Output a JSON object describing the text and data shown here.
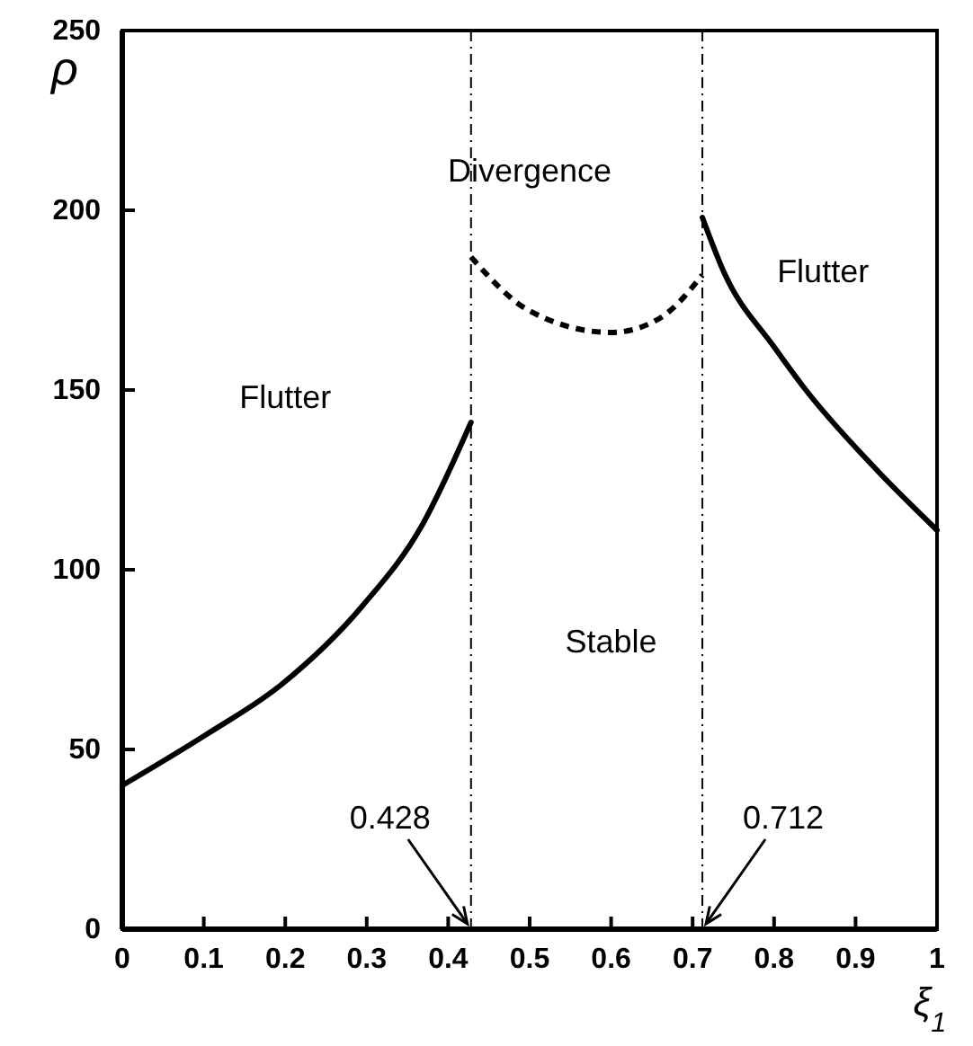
{
  "chart_data": {
    "type": "line",
    "xlabel": "ξ$_{1}$",
    "ylabel": "ρ",
    "xlim": [
      0,
      1
    ],
    "ylim": [
      0,
      250
    ],
    "xticks": [
      0,
      0.1,
      0.2,
      0.3,
      0.4,
      0.5,
      0.6,
      0.7,
      0.8,
      0.9,
      1
    ],
    "yticks": [
      0,
      50,
      100,
      150,
      200,
      250
    ],
    "grid": false,
    "marker": "none",
    "series": [
      {
        "color": "#000000",
        "line_style": "solid",
        "x": [
          0,
          0.102,
          0.195,
          0.295,
          0.367,
          0.428
        ],
        "values": [
          40,
          54,
          68,
          90,
          112,
          141
        ]
      },
      {
        "color": "#000000",
        "line_style": "dashed",
        "x": [
          0.428,
          0.5,
          0.6,
          0.66,
          0.712
        ],
        "values": [
          187,
          172,
          166,
          170,
          182
        ]
      },
      {
        "color": "#000000",
        "line_style": "solid",
        "x": [
          0.712,
          0.738,
          0.8,
          0.839,
          0.925,
          1
        ],
        "values": [
          198,
          183,
          162,
          150,
          128,
          111
        ]
      }
    ],
    "ref_lines": [
      {
        "axis": "x",
        "value": 0.428,
        "label": "0.428",
        "line_style": "dashdot"
      },
      {
        "axis": "x",
        "value": 0.712,
        "label": "0.712",
        "line_style": "dashdot"
      }
    ],
    "annotations": [
      "Flutter",
      "Divergence",
      "Stable",
      "Flutter"
    ]
  }
}
